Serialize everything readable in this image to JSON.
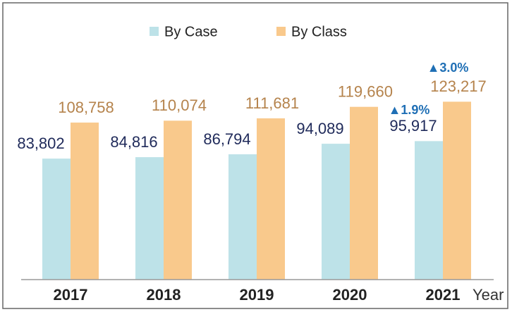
{
  "chart_data": {
    "type": "bar",
    "categories": [
      "2017",
      "2018",
      "2019",
      "2020",
      "2021"
    ],
    "x_label": "Year",
    "series": [
      {
        "name": "By Case",
        "color": "#bde2e8",
        "label_color": "#1f2a5a",
        "values": [
          83802,
          84816,
          86794,
          94089,
          95917
        ],
        "value_labels": [
          "83,802",
          "84,816",
          "86,794",
          "94,089",
          "95,917"
        ]
      },
      {
        "name": "By Class",
        "color": "#f9c98c",
        "label_color": "#b5834c",
        "values": [
          108758,
          110074,
          111681,
          119660,
          123217
        ],
        "value_labels": [
          "108,758",
          "110,074",
          "111,681",
          "119,660",
          "123,217"
        ]
      }
    ],
    "annotations": [
      {
        "text": "▲1.9%"
      },
      {
        "text": "▲3.0%"
      }
    ],
    "annotation_color": "#1f6fb5",
    "ylim": [
      0,
      150000
    ],
    "legend": "top"
  }
}
